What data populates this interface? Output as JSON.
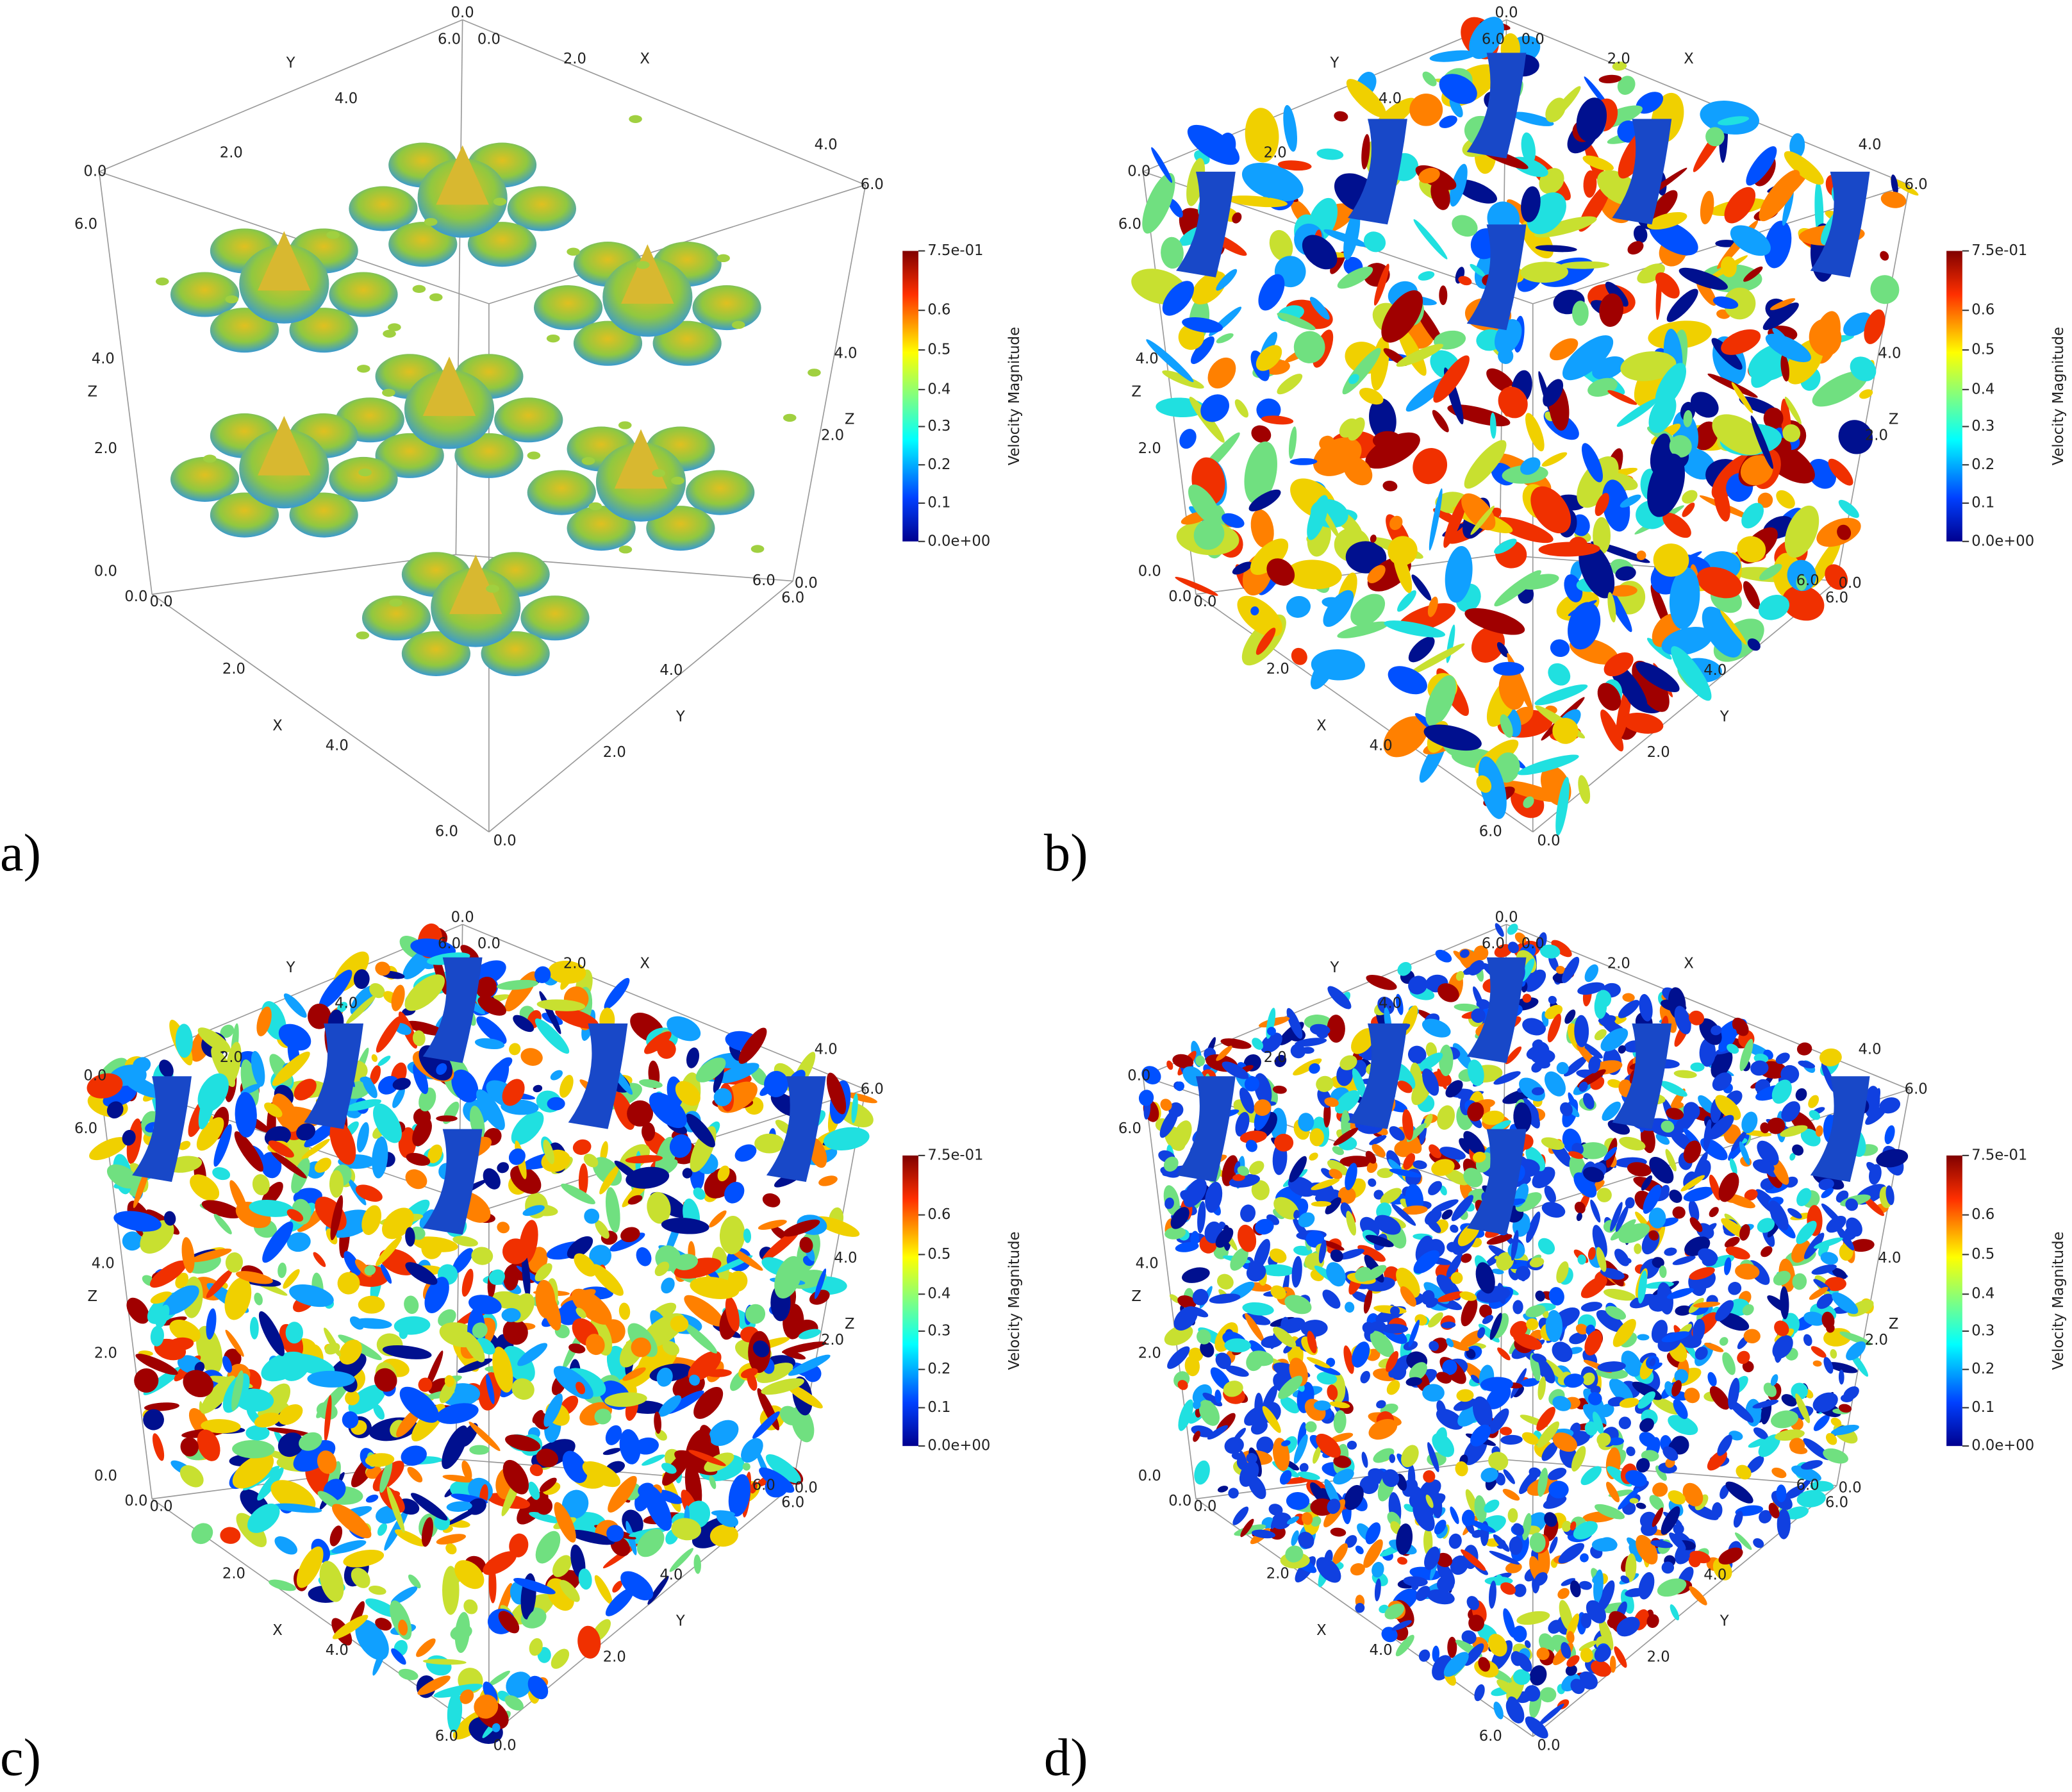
{
  "panels": [
    {
      "label": "a)",
      "axis_labels": [
        "Y",
        "4.0",
        "2.0",
        "0.0",
        "6.0",
        "4.0",
        "Z",
        "2.0",
        "0.0",
        "0.0",
        "0.0",
        "2.0",
        "X",
        "4.0",
        "6.0",
        "0.0",
        "2.0",
        "Y",
        "4.0",
        "6.0",
        "0.0",
        "6.0",
        "2.0",
        "Z",
        "4.0",
        "6.0",
        "4.0",
        "X",
        "2.0",
        "0.0",
        "6.0",
        "0.0"
      ],
      "colorbar": {
        "title": "Velocity Magnitude",
        "ticks": [
          "7.5e-01",
          "0.6",
          "0.5",
          "0.4",
          "0.3",
          "0.2",
          "0.1",
          "0.0e+00"
        ]
      }
    },
    {
      "label": "b)",
      "axis_labels": [
        "Y",
        "4.0",
        "2.0",
        "0.0",
        "6.0",
        "4.0",
        "Z",
        "2.0",
        "0.0",
        "0.0",
        "0.0",
        "2.0",
        "X",
        "4.0",
        "6.0",
        "0.0",
        "2.0",
        "Y",
        "4.0",
        "6.0",
        "0.0",
        "6.0",
        "2.0",
        "Z",
        "4.0",
        "6.0",
        "4.0",
        "X",
        "2.0",
        "0.0",
        "6.0",
        "0.0"
      ],
      "colorbar": {
        "title": "Velocity Magnitude",
        "ticks": [
          "7.5e-01",
          "0.6",
          "0.5",
          "0.4",
          "0.3",
          "0.2",
          "0.1",
          "0.0e+00"
        ]
      }
    },
    {
      "label": "c)",
      "axis_labels": [
        "Y",
        "4.0",
        "2.0",
        "0.0",
        "6.0",
        "4.0",
        "Z",
        "2.0",
        "0.0",
        "0.0",
        "0.0",
        "2.0",
        "X",
        "4.0",
        "6.0",
        "0.0",
        "2.0",
        "Y",
        "4.0",
        "6.0",
        "0.0",
        "6.0",
        "2.0",
        "Z",
        "4.0",
        "6.0",
        "4.0",
        "X",
        "2.0",
        "0.0",
        "6.0",
        "0.0"
      ],
      "colorbar": {
        "title": "Velocity Magnitude",
        "ticks": [
          "7.5e-01",
          "0.6",
          "0.5",
          "0.4",
          "0.3",
          "0.2",
          "0.1",
          "0.0e+00"
        ]
      }
    },
    {
      "label": "d)",
      "axis_labels": [
        "Y",
        "4.0",
        "2.0",
        "0.0",
        "6.0",
        "4.0",
        "Z",
        "2.0",
        "0.0",
        "0.0",
        "0.0",
        "2.0",
        "X",
        "4.0",
        "6.0",
        "0.0",
        "2.0",
        "Y",
        "4.0",
        "6.0",
        "0.0",
        "6.0",
        "2.0",
        "Z",
        "4.0",
        "6.0",
        "4.0",
        "X",
        "2.0",
        "0.0",
        "6.0",
        "0.0"
      ],
      "colorbar": {
        "title": "Velocity Magnitude",
        "ticks": [
          "7.5e-01",
          "0.6",
          "0.5",
          "0.4",
          "0.3",
          "0.2",
          "0.1",
          "0.0e+00"
        ]
      }
    }
  ]
}
